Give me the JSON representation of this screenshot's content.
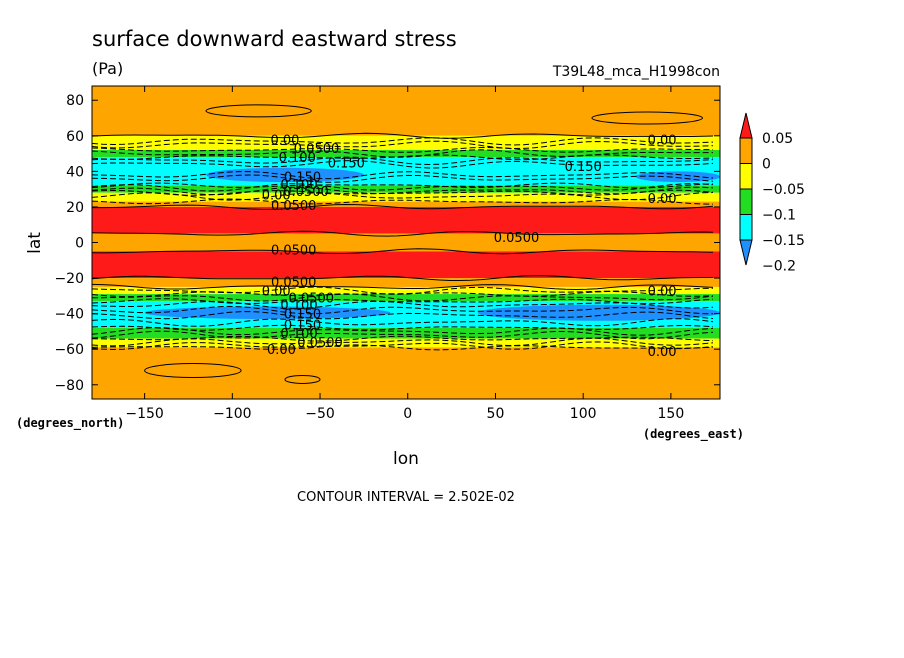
{
  "chart_data": {
    "type": "heatmap",
    "title": "surface downward eastward stress",
    "units": "(Pa)",
    "run_label": "T39L48_mca_H1998con",
    "xlabel": "lon",
    "ylabel": "lat",
    "x_units": "(degrees_east)",
    "y_units": "(degrees_north)",
    "xlim": [
      -180,
      178
    ],
    "ylim": [
      -88,
      88
    ],
    "x_ticks": [
      -150,
      -100,
      -50,
      0,
      50,
      100,
      150
    ],
    "x_tick_labels": [
      "-150",
      "-100",
      "-50",
      "0",
      "50",
      "100",
      "150"
    ],
    "y_ticks": [
      80,
      60,
      40,
      20,
      0,
      -20,
      -40,
      -60,
      -80
    ],
    "y_tick_labels": [
      "80",
      "60",
      "40",
      "20",
      "0",
      "-20",
      "-40",
      "-60",
      "-80"
    ],
    "contour_interval_text": "CONTOUR INTERVAL = 2.502E-02",
    "colorbar": {
      "levels": [
        0.05,
        0,
        -0.05,
        -0.1,
        -0.15,
        -0.2
      ],
      "tick_labels": [
        "0.05",
        "0",
        "-0.05",
        "-0.1",
        "-0.15",
        "-0.2"
      ],
      "colors": [
        "#ff1a1a",
        "#ffa500",
        "#ffff00",
        "#22dd22",
        "#00ffff",
        "#1e90ff"
      ]
    },
    "zonal_bands": [
      {
        "lat_range": [
          60,
          88
        ],
        "value_range": [
          0,
          0.05
        ],
        "color": "#ffa500"
      },
      {
        "lat_range": [
          52,
          60
        ],
        "value_range": [
          -0.05,
          0
        ],
        "color": "#ffff00"
      },
      {
        "lat_range": [
          48,
          52
        ],
        "value_range": [
          -0.1,
          -0.05
        ],
        "color": "#22dd22"
      },
      {
        "lat_range": [
          32,
          48
        ],
        "value_range": [
          -0.15,
          -0.1
        ],
        "color": "#00ffff"
      },
      {
        "lat_range": [
          28,
          32
        ],
        "value_range": [
          -0.1,
          -0.05
        ],
        "color": "#22dd22"
      },
      {
        "lat_range": [
          23,
          28
        ],
        "value_range": [
          -0.05,
          0
        ],
        "color": "#ffff00"
      },
      {
        "lat_range": [
          20,
          23
        ],
        "value_range": [
          0,
          0.05
        ],
        "color": "#ffa500"
      },
      {
        "lat_range": [
          5,
          20
        ],
        "value_range": [
          0.05,
          0.1
        ],
        "color": "#ff1a1a"
      },
      {
        "lat_range": [
          -5,
          5
        ],
        "value_range": [
          0,
          0.05
        ],
        "color": "#ffa500"
      },
      {
        "lat_range": [
          -20,
          -5
        ],
        "value_range": [
          0.05,
          0.1
        ],
        "color": "#ff1a1a"
      },
      {
        "lat_range": [
          -25,
          -20
        ],
        "value_range": [
          0,
          0.05
        ],
        "color": "#ffa500"
      },
      {
        "lat_range": [
          -29,
          -25
        ],
        "value_range": [
          -0.05,
          0
        ],
        "color": "#ffff00"
      },
      {
        "lat_range": [
          -33,
          -29
        ],
        "value_range": [
          -0.1,
          -0.05
        ],
        "color": "#22dd22"
      },
      {
        "lat_range": [
          -48,
          -33
        ],
        "value_range": [
          -0.15,
          -0.1
        ],
        "color": "#00ffff"
      },
      {
        "lat_range": [
          -54,
          -48
        ],
        "value_range": [
          -0.1,
          -0.05
        ],
        "color": "#22dd22"
      },
      {
        "lat_range": [
          -59,
          -54
        ],
        "value_range": [
          -0.05,
          0
        ],
        "color": "#ffff00"
      },
      {
        "lat_range": [
          -88,
          -59
        ],
        "value_range": [
          0,
          0.05
        ],
        "color": "#ffa500"
      }
    ],
    "strong_cores": [
      {
        "lat_range": [
          34,
          42
        ],
        "lon_range": [
          -115,
          -25
        ],
        "value_range": [
          -0.2,
          -0.15
        ],
        "color": "#1e90ff"
      },
      {
        "lat_range": [
          -43,
          -36
        ],
        "lon_range": [
          -150,
          -10
        ],
        "value_range": [
          -0.2,
          -0.15
        ],
        "color": "#1e90ff"
      },
      {
        "lat_range": [
          -44,
          -35
        ],
        "lon_range": [
          40,
          178
        ],
        "value_range": [
          -0.2,
          -0.15
        ],
        "color": "#1e90ff"
      },
      {
        "lat_range": [
          34,
          40
        ],
        "lon_range": [
          130,
          178
        ],
        "value_range": [
          -0.2,
          -0.15
        ],
        "color": "#1e90ff"
      }
    ],
    "contour_labels": [
      {
        "text": "0.00",
        "lon": -70,
        "lat": 58
      },
      {
        "text": "0.0500",
        "lon": -52,
        "lat": 53
      },
      {
        "text": "0.100",
        "lon": -63,
        "lat": 48
      },
      {
        "text": "0.150",
        "lon": -35,
        "lat": 45
      },
      {
        "text": "0.150",
        "lon": 100,
        "lat": 43
      },
      {
        "text": "0.150",
        "lon": -60,
        "lat": 37
      },
      {
        "text": "0.100",
        "lon": -62,
        "lat": 33
      },
      {
        "text": "0.0500",
        "lon": -58,
        "lat": 29
      },
      {
        "text": "0.00",
        "lon": -75,
        "lat": 27
      },
      {
        "text": "0.0500",
        "lon": -65,
        "lat": 21
      },
      {
        "text": "0.00",
        "lon": 145,
        "lat": 58
      },
      {
        "text": "0.00",
        "lon": 145,
        "lat": 25
      },
      {
        "text": "0.0500",
        "lon": -65,
        "lat": -4
      },
      {
        "text": "0.0500",
        "lon": 62,
        "lat": 3
      },
      {
        "text": "0.0500",
        "lon": -65,
        "lat": -22
      },
      {
        "text": "0.00",
        "lon": -75,
        "lat": -27
      },
      {
        "text": "0.0500",
        "lon": -55,
        "lat": -31
      },
      {
        "text": "0.100",
        "lon": -62,
        "lat": -35
      },
      {
        "text": "0.150",
        "lon": -60,
        "lat": -40
      },
      {
        "text": "0.150",
        "lon": -60,
        "lat": -46
      },
      {
        "text": "0.100",
        "lon": -62,
        "lat": -51
      },
      {
        "text": "0.0500",
        "lon": -50,
        "lat": -56
      },
      {
        "text": "0.00",
        "lon": -72,
        "lat": -60
      },
      {
        "text": "0.00",
        "lon": 145,
        "lat": -27
      },
      {
        "text": "0.00",
        "lon": 145,
        "lat": -61
      }
    ],
    "closed_contours": [
      {
        "lat": 74,
        "lon_range": [
          -115,
          -55
        ],
        "height": 6
      },
      {
        "lat": 70,
        "lon_range": [
          105,
          168
        ],
        "height": 6
      },
      {
        "lat": -72,
        "lon_range": [
          -150,
          -95
        ],
        "height": 7
      },
      {
        "lat": -77,
        "lon_range": [
          -70,
          -50
        ],
        "height": 4
      }
    ]
  }
}
